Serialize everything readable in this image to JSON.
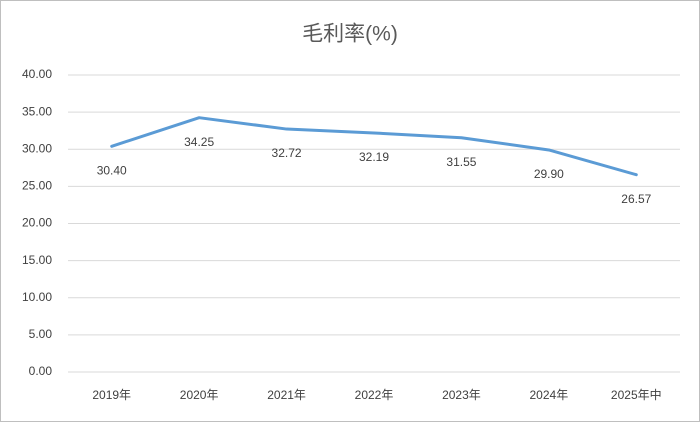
{
  "chart_data": {
    "type": "line",
    "title": "毛利率(%)",
    "categories": [
      "2019年",
      "2020年",
      "2021年",
      "2022年",
      "2023年",
      "2024年",
      "2025年中"
    ],
    "values": [
      30.4,
      34.25,
      32.72,
      32.19,
      31.55,
      29.9,
      26.57
    ],
    "value_labels": [
      "30.40",
      "34.25",
      "32.72",
      "32.19",
      "31.55",
      "29.90",
      "26.57"
    ],
    "color": "#5b9bd5",
    "ylim": [
      0,
      40
    ],
    "yticks": [
      {
        "value": 0,
        "label": "0.00"
      },
      {
        "value": 5,
        "label": "5.00"
      },
      {
        "value": 10,
        "label": "10.00"
      },
      {
        "value": 15,
        "label": "15.00"
      },
      {
        "value": 20,
        "label": "20.00"
      },
      {
        "value": 25,
        "label": "25.00"
      },
      {
        "value": 30,
        "label": "30.00"
      },
      {
        "value": 35,
        "label": "35.00"
      },
      {
        "value": 40,
        "label": "40.00"
      }
    ],
    "grid": true
  }
}
